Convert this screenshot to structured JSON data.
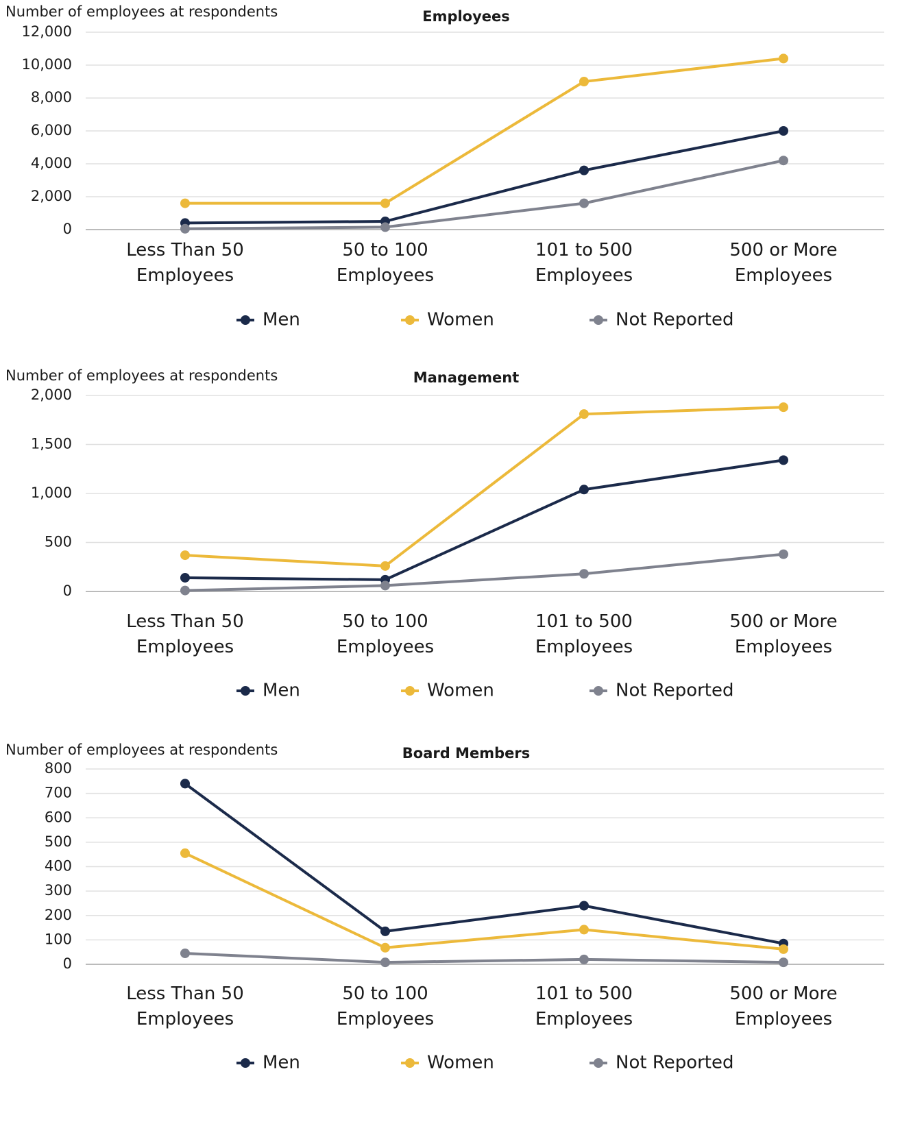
{
  "chart_data": [
    {
      "type": "line",
      "title": "Employees",
      "ylabel": "Number of employees at respondents",
      "categories": [
        "Less Than 50 Employees",
        "50 to 100 Employees",
        "101 to 500 Employees",
        "500 or More Employees"
      ],
      "series": [
        {
          "name": "Men",
          "color": "#1b2a4a",
          "values": [
            400,
            500,
            3600,
            6000
          ]
        },
        {
          "name": "Women",
          "color": "#ecb93a",
          "values": [
            1600,
            1600,
            9000,
            10400
          ]
        },
        {
          "name": "Not Reported",
          "color": "#7f828e",
          "values": [
            50,
            150,
            1600,
            4200
          ]
        }
      ],
      "ylim": [
        0,
        12000
      ],
      "yticks": [
        0,
        {
          "value": 2000,
          "label": "2,000"
        },
        {
          "value": 4000,
          "label": "4,000"
        },
        {
          "value": 6000,
          "label": "6,000"
        },
        {
          "value": 8000,
          "label": "8,000"
        },
        {
          "value": 10000,
          "label": "10,000"
        },
        {
          "value": 12000,
          "label": "12,000"
        }
      ],
      "grid": true,
      "legend": "bottom"
    },
    {
      "type": "line",
      "title": "Management",
      "ylabel": "Number of employees at respondents",
      "categories": [
        "Less Than 50 Employees",
        "50 to 100 Employees",
        "101 to 500 Employees",
        "500 or More Employees"
      ],
      "series": [
        {
          "name": "Men",
          "color": "#1b2a4a",
          "values": [
            140,
            120,
            1040,
            1340
          ]
        },
        {
          "name": "Women",
          "color": "#ecb93a",
          "values": [
            370,
            260,
            1810,
            1880
          ]
        },
        {
          "name": "Not Reported",
          "color": "#7f828e",
          "values": [
            10,
            60,
            180,
            380
          ]
        }
      ],
      "ylim": [
        0,
        2000
      ],
      "yticks": [
        0,
        500,
        {
          "value": 1000,
          "label": "1,000"
        },
        {
          "value": 1500,
          "label": "1,500"
        },
        {
          "value": 2000,
          "label": "2,000"
        }
      ],
      "grid": true,
      "legend": "bottom"
    },
    {
      "type": "line",
      "title": "Board Members",
      "ylabel": "Number of employees at respondents",
      "categories": [
        "Less Than 50 Employees",
        "50 to 100 Employees",
        "101 to 500 Employees",
        "500 or More Employees"
      ],
      "series": [
        {
          "name": "Men",
          "color": "#1b2a4a",
          "values": [
            740,
            135,
            240,
            85
          ]
        },
        {
          "name": "Women",
          "color": "#ecb93a",
          "values": [
            455,
            68,
            142,
            62
          ]
        },
        {
          "name": "Not Reported",
          "color": "#7f828e",
          "values": [
            45,
            8,
            20,
            8
          ]
        }
      ],
      "ylim": [
        0,
        800
      ],
      "yticks": [
        0,
        100,
        200,
        300,
        400,
        500,
        600,
        700,
        800
      ],
      "grid": true,
      "legend": "bottom"
    }
  ]
}
